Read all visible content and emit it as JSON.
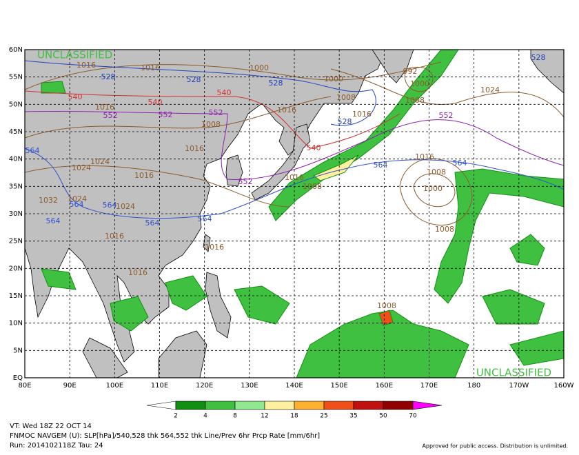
{
  "map": {
    "classification": "UNCLASSIFIED",
    "lat_labels": [
      "60N",
      "55N",
      "50N",
      "45N",
      "40N",
      "35N",
      "30N",
      "25N",
      "20N",
      "15N",
      "10N",
      "5N",
      "EQ"
    ],
    "lon_labels": [
      "80E",
      "90E",
      "100E",
      "110E",
      "120E",
      "130E",
      "140E",
      "150E",
      "160E",
      "170E",
      "180",
      "170W",
      "160W"
    ],
    "contours": {
      "slp": {
        "color": "#8b5a2b",
        "labels": [
          "1016",
          "1016",
          "1000",
          "1000",
          "1008",
          "1016",
          "992",
          "1000",
          "1008",
          "1024",
          "1016",
          "1016",
          "1008",
          "1016",
          "1024",
          "1024",
          "1016",
          "1016",
          "1008",
          "1016",
          "1008",
          "1000",
          "1008",
          "1032",
          "1024",
          "1024",
          "1016",
          "1016",
          "1016",
          "1008"
        ]
      },
      "thk_528": {
        "color": "#2040c0",
        "labels": [
          "528",
          "528",
          "528",
          "528",
          "528"
        ]
      },
      "thk_540": {
        "color": "#d03030",
        "labels": [
          "540",
          "540",
          "540",
          "540"
        ]
      },
      "thk_552": {
        "color": "#9020b0",
        "labels": [
          "552",
          "552",
          "552",
          "552",
          "552"
        ]
      },
      "thk_564": {
        "color": "#3050d0",
        "labels": [
          "564",
          "564",
          "564",
          "564",
          "564",
          "564",
          "564",
          "564"
        ]
      }
    }
  },
  "legend": {
    "levels": [
      "2",
      "4",
      "8",
      "12",
      "18",
      "25",
      "35",
      "50",
      "70"
    ],
    "colors": [
      "#109010",
      "#40c040",
      "#90e890",
      "#fff0a0",
      "#ffb030",
      "#f05018",
      "#c01010",
      "#900000",
      "#700000"
    ],
    "low_color": "#ffffff",
    "high_color": "#ff00ff"
  },
  "footer": {
    "valid_time": "VT: Wed 18Z 22 OCT 14",
    "product": "FNMOC NAVGEM (U): SLP[hPa]/540,528 thk 564,552 thk Line/Prev 6hr Prcp Rate [mm/6hr]",
    "run": "Run: 2014102118Z Tau: 24",
    "approval": "Approved for public access. Distribution is unlimited."
  }
}
